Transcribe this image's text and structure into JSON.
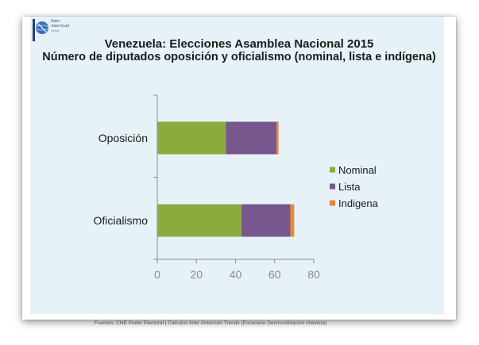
{
  "logo": {
    "line1": "Inter",
    "line2": "American",
    "line3": "Trends"
  },
  "chart_data": {
    "type": "bar",
    "orientation": "horizontal",
    "stacked": true,
    "title": "Venezuela: Elecciones Asamblea Nacional 2015",
    "subtitle": "Número de diputados oposición y oficialismo (nominal, lista e indígena)",
    "categories": [
      "Oposición",
      "Oficialismo"
    ],
    "series": [
      {
        "name": "Nominal",
        "color": "#8aac3f",
        "values": [
          35,
          43
        ]
      },
      {
        "name": "Lista",
        "color": "#76588d",
        "values": [
          26,
          25
        ]
      },
      {
        "name": "Indigena",
        "color": "#e8863a",
        "values": [
          1,
          2
        ]
      }
    ],
    "xlim": [
      0,
      80
    ],
    "xticks": [
      "0",
      "20",
      "40",
      "60",
      "80"
    ],
    "grid": false,
    "legend": "right"
  },
  "footer": "Fuentes: CNE Poder Electoral  |  Cálculos Inter American Trends (Escenario Desmovilización chavista)"
}
